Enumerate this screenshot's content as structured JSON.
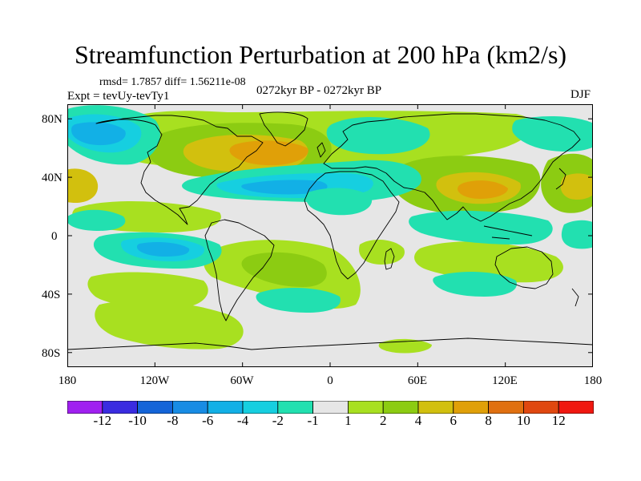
{
  "title": "Streamfunction Perturbation at 200 hPa (km2/s)",
  "stats": "rmsd= 1.7857 diff= 1.56211e-08",
  "experiment": "Expt = tevUy-tevTy1",
  "period": "0272kyr BP - 0272kyr BP",
  "season": "DJF",
  "map": {
    "projection": "cylindrical-equidistant",
    "lon_range": [
      -180,
      180
    ],
    "lat_range": [
      -90,
      90
    ],
    "lat_ticks": [
      {
        "value": 80,
        "label": "80N"
      },
      {
        "value": 40,
        "label": "40N"
      },
      {
        "value": 0,
        "label": "0"
      },
      {
        "value": -40,
        "label": "40S"
      },
      {
        "value": -80,
        "label": "80S"
      }
    ],
    "lon_ticks": [
      {
        "value": -180,
        "label": "180"
      },
      {
        "value": -120,
        "label": "120W"
      },
      {
        "value": -60,
        "label": "60W"
      },
      {
        "value": 0,
        "label": "0"
      },
      {
        "value": 60,
        "label": "60E"
      },
      {
        "value": 120,
        "label": "120E"
      },
      {
        "value": 180,
        "label": "180"
      }
    ],
    "background_color": "#e6e6e6",
    "coastline_color": "#000000"
  },
  "colorbar": {
    "levels": [
      -12,
      -10,
      -8,
      -6,
      -4,
      -2,
      -1,
      1,
      2,
      4,
      6,
      8,
      10,
      12
    ],
    "labels": [
      "-12",
      "-10",
      "-8",
      "-6",
      "-4",
      "-2",
      "-1",
      "1",
      "2",
      "4",
      "6",
      "8",
      "10",
      "12"
    ],
    "colors": [
      "#a020f0",
      "#3a2ce0",
      "#1464d8",
      "#188ce4",
      "#12b0e6",
      "#16cfe0",
      "#22e0b0",
      "#e6e6e6",
      "#a8e020",
      "#8ccc12",
      "#d2c00e",
      "#e0a008",
      "#e07010",
      "#e04810",
      "#f01810"
    ]
  }
}
